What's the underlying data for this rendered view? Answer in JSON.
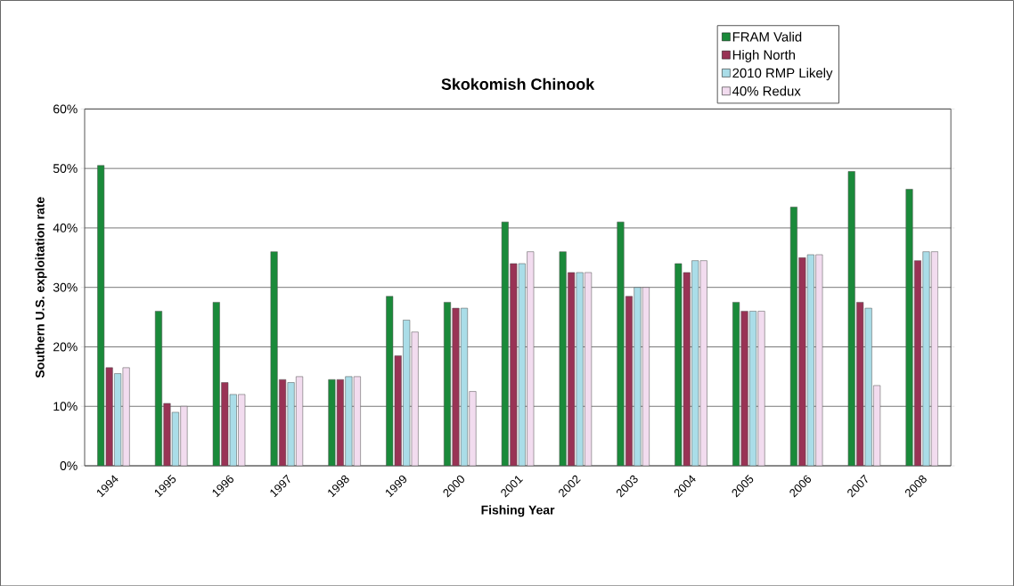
{
  "chart_data": {
    "type": "bar",
    "title": "Skokomish Chinook",
    "xlabel": "Fishing Year",
    "ylabel": "Southern U.S. exploitation rate",
    "categories": [
      "1994",
      "1995",
      "1996",
      "1997",
      "1998",
      "1999",
      "2000",
      "2001",
      "2002",
      "2003",
      "2004",
      "2005",
      "2006",
      "2007",
      "2008"
    ],
    "series": [
      {
        "name": "FRAM Valid",
        "color": "#1a8a3a",
        "values": [
          50.5,
          26,
          27.5,
          36,
          14.5,
          28.5,
          27.5,
          41,
          36,
          41,
          34,
          27.5,
          43.5,
          49.5,
          46.5
        ]
      },
      {
        "name": "High North",
        "color": "#993355",
        "values": [
          16.5,
          10.5,
          14,
          14.5,
          14.5,
          18.5,
          26.5,
          34,
          32.5,
          28.5,
          32.5,
          26,
          35,
          27.5,
          34.5
        ]
      },
      {
        "name": "2010 RMP Likely",
        "color": "#aadde8",
        "values": [
          15.5,
          9,
          12,
          14,
          15,
          24.5,
          26.5,
          34,
          32.5,
          30,
          34.5,
          26,
          35.5,
          26.5,
          36
        ]
      },
      {
        "name": "40% Redux",
        "color": "#f2dcef",
        "values": [
          16.5,
          10,
          12,
          15,
          15,
          22.5,
          12.5,
          36,
          32.5,
          30,
          34.5,
          26,
          35.5,
          13.5,
          36
        ]
      }
    ],
    "ylim": [
      0,
      60
    ],
    "yticks": [
      {
        "value": 0,
        "label": "0%"
      },
      {
        "value": 10,
        "label": "10%"
      },
      {
        "value": 20,
        "label": "20%"
      },
      {
        "value": 30,
        "label": "30%"
      },
      {
        "value": 40,
        "label": "40%"
      },
      {
        "value": 50,
        "label": "50%"
      },
      {
        "value": 60,
        "label": "60%"
      }
    ],
    "grid": "y",
    "legend": "top right"
  }
}
